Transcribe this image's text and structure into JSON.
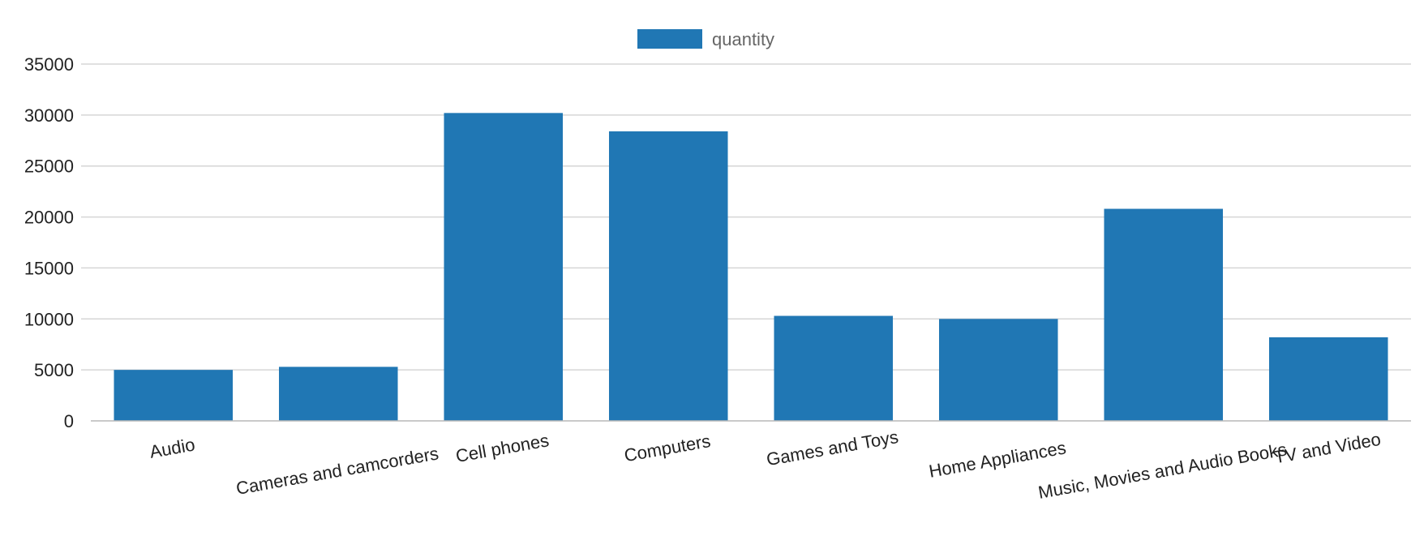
{
  "chart_data": {
    "type": "bar",
    "title": "",
    "xlabel": "",
    "ylabel": "",
    "categories": [
      "Audio",
      "Cameras and camcorders",
      "Cell phones",
      "Computers",
      "Games and Toys",
      "Home Appliances",
      "Music, Movies and Audio Books",
      "TV and Video"
    ],
    "series": [
      {
        "name": "quantity",
        "values": [
          5000,
          5300,
          30200,
          28400,
          10300,
          10000,
          20800,
          8200
        ],
        "color": "#2077b4"
      }
    ],
    "yticks": [
      "0",
      "5000",
      "10000",
      "15000",
      "20000",
      "25000",
      "30000",
      "35000"
    ],
    "ylim": [
      0,
      35000
    ],
    "grid": true,
    "legend_position": "top-center"
  }
}
